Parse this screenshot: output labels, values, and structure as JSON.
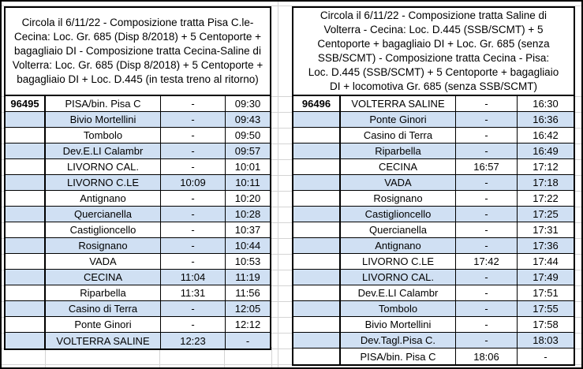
{
  "colors": {
    "background": "#ffffff",
    "row_alt": "#d0e0f3",
    "border": "#000000",
    "gridline": "#d4d4d4"
  },
  "tables": [
    {
      "train_number": "96495",
      "header_lines": [
        "Circola il 6/11/22 - Composizione tratta Pisa C.le-",
        "Cecina: Loc. Gr. 685 (Disp 8/2018) + 5 Centoporte +",
        "bagagliaio DI - Composizione tratta Cecina-Saline di",
        "Volterra: Loc. Gr. 685 (Disp 8/2018) + 5 Centoporte +",
        "bagagliaio DI + Loc. D.445 (in testa treno al ritorno)"
      ],
      "rows": [
        {
          "station": "PISA/bin. Pisa C",
          "arrival": "-",
          "departure": "09:30"
        },
        {
          "station": "Bivio Mortellini",
          "arrival": "-",
          "departure": "09:43"
        },
        {
          "station": "Tombolo",
          "arrival": "-",
          "departure": "09:50"
        },
        {
          "station": "Dev.E.LI Calambr",
          "arrival": "-",
          "departure": "09:57"
        },
        {
          "station": "LIVORNO CAL.",
          "arrival": "-",
          "departure": "10:01"
        },
        {
          "station": "LIVORNO C.LE",
          "arrival": "10:09",
          "departure": "10:11"
        },
        {
          "station": "Antignano",
          "arrival": "-",
          "departure": "10:20"
        },
        {
          "station": "Quercianella",
          "arrival": "-",
          "departure": "10:28"
        },
        {
          "station": "Castiglioncello",
          "arrival": "-",
          "departure": "10:37"
        },
        {
          "station": "Rosignano",
          "arrival": "-",
          "departure": "10:44"
        },
        {
          "station": "VADA",
          "arrival": "-",
          "departure": "10:53"
        },
        {
          "station": "CECINA",
          "arrival": "11:04",
          "departure": "11:19"
        },
        {
          "station": "Riparbella",
          "arrival": "11:31",
          "departure": "11:56"
        },
        {
          "station": "Casino di Terra",
          "arrival": "-",
          "departure": "12:05"
        },
        {
          "station": "Ponte Ginori",
          "arrival": "-",
          "departure": "12:12"
        },
        {
          "station": "VOLTERRA SALINE",
          "arrival": "12:23",
          "departure": "-"
        }
      ]
    },
    {
      "train_number": "96496",
      "header_lines": [
        "Circola il 6/11/22 - Composizione tratta Saline di",
        "Volterra - Cecina:  Loc. D.445 (SSB/SCMT) + 5",
        "Centoporte +  bagagliaio DI + Loc. Gr. 685 (senza",
        "SSB/SCMT) - Composizione tratta Cecina - Pisa:",
        "Loc. D.445 (SSB/SCMT) + 5 Centoporte + bagagliaio",
        "DI +  locomotiva Gr. 685 (senza SSB/SCMT)"
      ],
      "rows": [
        {
          "station": "VOLTERRA SALINE",
          "arrival": "-",
          "departure": "16:30"
        },
        {
          "station": "Ponte Ginori",
          "arrival": "-",
          "departure": "16:36"
        },
        {
          "station": "Casino di Terra",
          "arrival": "-",
          "departure": "16:42"
        },
        {
          "station": "Riparbella",
          "arrival": "-",
          "departure": "16:49"
        },
        {
          "station": "CECINA",
          "arrival": "16:57",
          "departure": "17:12"
        },
        {
          "station": "VADA",
          "arrival": "-",
          "departure": "17:18"
        },
        {
          "station": "Rosignano",
          "arrival": "-",
          "departure": "17:22"
        },
        {
          "station": "Castiglioncello",
          "arrival": "-",
          "departure": "17:25"
        },
        {
          "station": "Quercianella",
          "arrival": "-",
          "departure": "17:31"
        },
        {
          "station": "Antignano",
          "arrival": "-",
          "departure": "17:36"
        },
        {
          "station": "LIVORNO C.LE",
          "arrival": "17:42",
          "departure": "17:44"
        },
        {
          "station": "LIVORNO CAL.",
          "arrival": "-",
          "departure": "17:49"
        },
        {
          "station": "Dev.E.LI Calambr",
          "arrival": "-",
          "departure": "17:51"
        },
        {
          "station": "Tombolo",
          "arrival": "-",
          "departure": "17:55"
        },
        {
          "station": "Bivio Mortellini",
          "arrival": "-",
          "departure": "17:58"
        },
        {
          "station": "Dev.Tagl.Pisa C.",
          "arrival": "-",
          "departure": "18:03"
        },
        {
          "station": "PISA/bin. Pisa C",
          "arrival": "18:06",
          "departure": "-"
        }
      ]
    }
  ]
}
